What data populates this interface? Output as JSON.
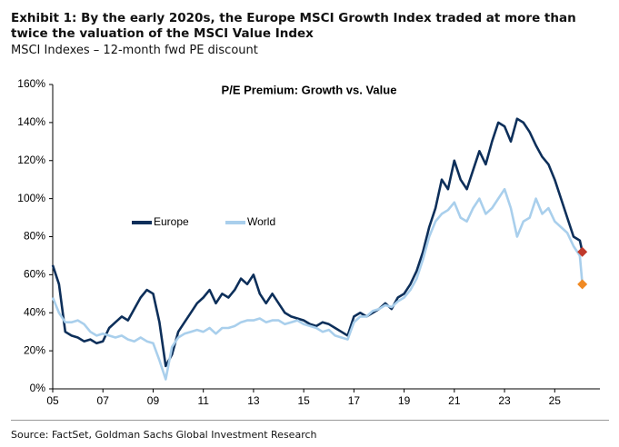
{
  "header": {
    "title": "Exhibit 1: By the early 2020s, the Europe MSCI Growth Index traded at more than twice the valuation of the MSCI Value Index",
    "subtitle": "MSCI Indexes – 12-month fwd PE discount"
  },
  "footer": {
    "source": "Source: FactSet, Goldman Sachs Global Investment Research"
  },
  "chart_data": {
    "type": "line",
    "title": "P/E Premium: Growth vs. Value",
    "x": [
      2005,
      2005.25,
      2005.5,
      2005.75,
      2006,
      2006.25,
      2006.5,
      2006.75,
      2007,
      2007.25,
      2007.5,
      2007.75,
      2008,
      2008.25,
      2008.5,
      2008.75,
      2009,
      2009.25,
      2009.5,
      2009.75,
      2010,
      2010.25,
      2010.5,
      2010.75,
      2011,
      2011.25,
      2011.5,
      2011.75,
      2012,
      2012.25,
      2012.5,
      2012.75,
      2013,
      2013.25,
      2013.5,
      2013.75,
      2014,
      2014.25,
      2014.5,
      2014.75,
      2015,
      2015.25,
      2015.5,
      2015.75,
      2016,
      2016.25,
      2016.5,
      2016.75,
      2017,
      2017.25,
      2017.5,
      2017.75,
      2018,
      2018.25,
      2018.5,
      2018.75,
      2019,
      2019.25,
      2019.5,
      2019.75,
      2020,
      2020.25,
      2020.5,
      2020.75,
      2021,
      2021.25,
      2021.5,
      2021.75,
      2022,
      2022.25,
      2022.5,
      2022.75,
      2023,
      2023.25,
      2023.5,
      2023.75,
      2024,
      2024.25,
      2024.5,
      2024.75,
      2025,
      2025.25,
      2025.5,
      2025.75,
      2026,
      2026.1
    ],
    "series": [
      {
        "name": "Europe",
        "color": "#0d2f5a",
        "width": 2.6,
        "values": [
          65,
          55,
          30,
          28,
          27,
          25,
          26,
          24,
          25,
          32,
          35,
          38,
          36,
          42,
          48,
          52,
          50,
          35,
          12,
          18,
          30,
          35,
          40,
          45,
          48,
          52,
          45,
          50,
          48,
          52,
          58,
          55,
          60,
          50,
          45,
          50,
          45,
          40,
          38,
          37,
          36,
          34,
          33,
          35,
          34,
          32,
          30,
          28,
          38,
          40,
          38,
          40,
          42,
          45,
          42,
          48,
          50,
          55,
          62,
          72,
          85,
          95,
          110,
          105,
          120,
          110,
          105,
          115,
          125,
          118,
          130,
          140,
          138,
          130,
          142,
          140,
          135,
          128,
          122,
          118,
          110,
          100,
          90,
          80,
          78,
          72
        ]
      },
      {
        "name": "World",
        "color": "#a9cfec",
        "width": 2.6,
        "values": [
          48,
          40,
          35,
          35,
          36,
          34,
          30,
          28,
          29,
          28,
          27,
          28,
          26,
          25,
          27,
          25,
          24,
          15,
          5,
          22,
          27,
          29,
          30,
          31,
          30,
          32,
          29,
          32,
          32,
          33,
          35,
          36,
          36,
          37,
          35,
          36,
          36,
          34,
          35,
          36,
          34,
          33,
          32,
          30,
          31,
          28,
          27,
          26,
          35,
          38,
          38,
          41,
          42,
          44,
          43,
          46,
          48,
          52,
          58,
          68,
          80,
          88,
          92,
          94,
          98,
          90,
          88,
          95,
          100,
          92,
          95,
          100,
          105,
          95,
          80,
          88,
          90,
          100,
          92,
          95,
          88,
          85,
          82,
          75,
          70,
          55
        ]
      }
    ],
    "end_markers": [
      {
        "x": 2026.1,
        "y": 72,
        "color": "#c0392b"
      },
      {
        "x": 2026.1,
        "y": 55,
        "color": "#f08a24"
      }
    ],
    "xlim": [
      2005,
      2026.8
    ],
    "xticks": [
      {
        "value": 2005,
        "label": "05"
      },
      {
        "value": 2007,
        "label": "07"
      },
      {
        "value": 2009,
        "label": "09"
      },
      {
        "value": 2011,
        "label": "11"
      },
      {
        "value": 2013,
        "label": "13"
      },
      {
        "value": 2015,
        "label": "15"
      },
      {
        "value": 2017,
        "label": "17"
      },
      {
        "value": 2019,
        "label": "19"
      },
      {
        "value": 2021,
        "label": "21"
      },
      {
        "value": 2023,
        "label": "23"
      },
      {
        "value": 2025,
        "label": "25"
      }
    ],
    "ylim": [
      0,
      160
    ],
    "yticks": [
      {
        "value": 0,
        "label": "0%"
      },
      {
        "value": 20,
        "label": "20%"
      },
      {
        "value": 40,
        "label": "40%"
      },
      {
        "value": 60,
        "label": "60%"
      },
      {
        "value": 80,
        "label": "80%"
      },
      {
        "value": 100,
        "label": "100%"
      },
      {
        "value": 120,
        "label": "120%"
      },
      {
        "value": 140,
        "label": "140%"
      },
      {
        "value": 160,
        "label": "160%"
      }
    ]
  }
}
